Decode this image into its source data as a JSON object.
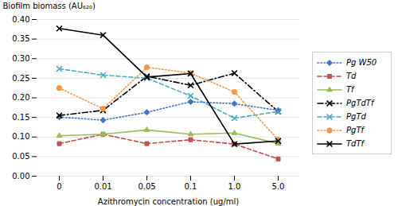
{
  "chart_data": {
    "type": "line",
    "categories": [
      "0",
      "0.01",
      "0.05",
      "0.1",
      "1.0",
      "5.0"
    ],
    "xlabel": "Azithromycin concentration (ug/ml)",
    "ylabel": "Biofilm biomass (AU₆₂₀)",
    "series": [
      {
        "name": "Pg W50",
        "color": "#4472C4",
        "line_style": "dotted",
        "marker": "diamond",
        "values": [
          0.151,
          0.143,
          0.163,
          0.19,
          0.185,
          0.168
        ]
      },
      {
        "name": "Td",
        "color": "#C0504D",
        "line_style": "dashed",
        "marker": "square",
        "values": [
          0.083,
          0.107,
          0.083,
          0.093,
          0.082,
          0.044
        ]
      },
      {
        "name": "Tf",
        "color": "#9BBB59",
        "line_style": "solid",
        "marker": "triangle",
        "values": [
          0.103,
          0.107,
          0.118,
          0.107,
          0.11,
          0.083
        ]
      },
      {
        "name": "PgTdTf",
        "color": "#000000",
        "line_style": "dashdot",
        "marker": "x",
        "values": [
          0.155,
          0.168,
          0.255,
          0.232,
          0.263,
          0.165
        ]
      },
      {
        "name": "PgTd",
        "color": "#4BACC6",
        "line_style": "dashed",
        "marker": "x",
        "values": [
          0.274,
          0.258,
          0.25,
          0.205,
          0.148,
          0.165
        ]
      },
      {
        "name": "PgTf",
        "color": "#F79646",
        "line_style": "dotted",
        "marker": "circle",
        "values": [
          0.225,
          0.172,
          0.278,
          0.263,
          0.215,
          0.093
        ]
      },
      {
        "name": "TdTf",
        "color": "#000000",
        "line_style": "solid",
        "marker": "x",
        "values": [
          0.377,
          0.36,
          0.253,
          0.262,
          0.082,
          0.09
        ]
      }
    ],
    "ylim": [
      0.0,
      0.4
    ],
    "yticks": [
      {
        "value": 0.0,
        "label": "0.00"
      },
      0.05,
      {
        "value": 0.1,
        "label": "0.10"
      },
      0.15,
      {
        "value": 0.2,
        "label": "0.20"
      },
      0.25,
      {
        "value": 0.3,
        "label": "0.30"
      },
      0.35,
      {
        "value": 0.4,
        "label": "0.40"
      }
    ],
    "grid": true,
    "legend": "right"
  }
}
